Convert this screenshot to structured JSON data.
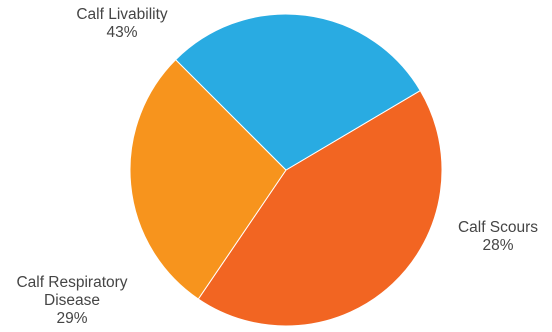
{
  "chart_data": {
    "type": "pie",
    "slices": [
      {
        "label_lines": [
          "Calf Livability"
        ],
        "percent_label": "43%",
        "value": 43,
        "color": "#f26522"
      },
      {
        "label_lines": [
          "Calf Scours"
        ],
        "percent_label": "28%",
        "value": 28,
        "color": "#f7941d"
      },
      {
        "label_lines": [
          "Calf Respiratory",
          "Disease"
        ],
        "percent_label": "29%",
        "value": 29,
        "color": "#29abe2"
      }
    ],
    "legend": "none"
  }
}
